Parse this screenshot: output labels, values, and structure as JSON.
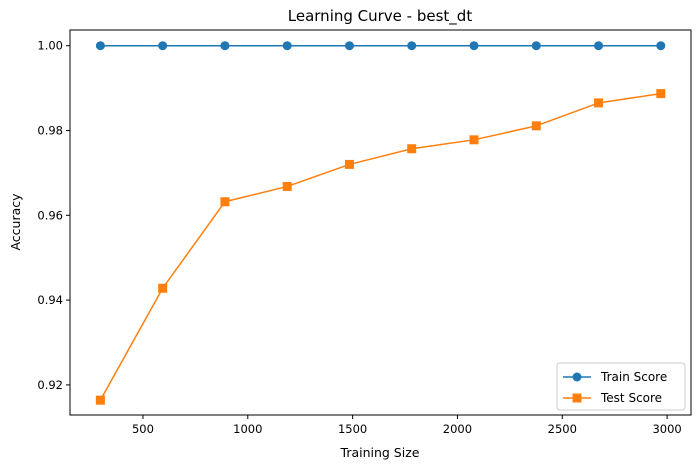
{
  "chart_data": {
    "type": "line",
    "title": "Learning Curve - best_dt",
    "xlabel": "Training Size",
    "ylabel": "Accuracy",
    "xlim": [
      152,
      3114
    ],
    "ylim": [
      0.9129,
      1.0037
    ],
    "xticks": [
      500,
      1000,
      1500,
      2000,
      2500,
      3000
    ],
    "xtick_labels": [
      "500",
      "1000",
      "1500",
      "2000",
      "2500",
      "3000"
    ],
    "yticks": [
      0.92,
      0.94,
      0.96,
      0.98,
      1.0
    ],
    "ytick_labels": [
      "0.92",
      "0.94",
      "0.96",
      "0.98",
      "1.00"
    ],
    "x": [
      297,
      594,
      891,
      1188,
      1485,
      1782,
      2079,
      2376,
      2673,
      2970
    ],
    "series": [
      {
        "name": "Train Score",
        "color": "#1f77b4",
        "marker": "circle",
        "values": [
          1.0,
          1.0,
          1.0,
          1.0,
          1.0,
          1.0,
          1.0,
          1.0,
          1.0,
          1.0
        ]
      },
      {
        "name": "Test Score",
        "color": "#ff7f0e",
        "marker": "square",
        "values": [
          0.9164,
          0.9428,
          0.9632,
          0.9668,
          0.972,
          0.9757,
          0.9778,
          0.9811,
          0.9865,
          0.9887
        ]
      }
    ],
    "grid": false,
    "legend_position": "lower-right"
  }
}
